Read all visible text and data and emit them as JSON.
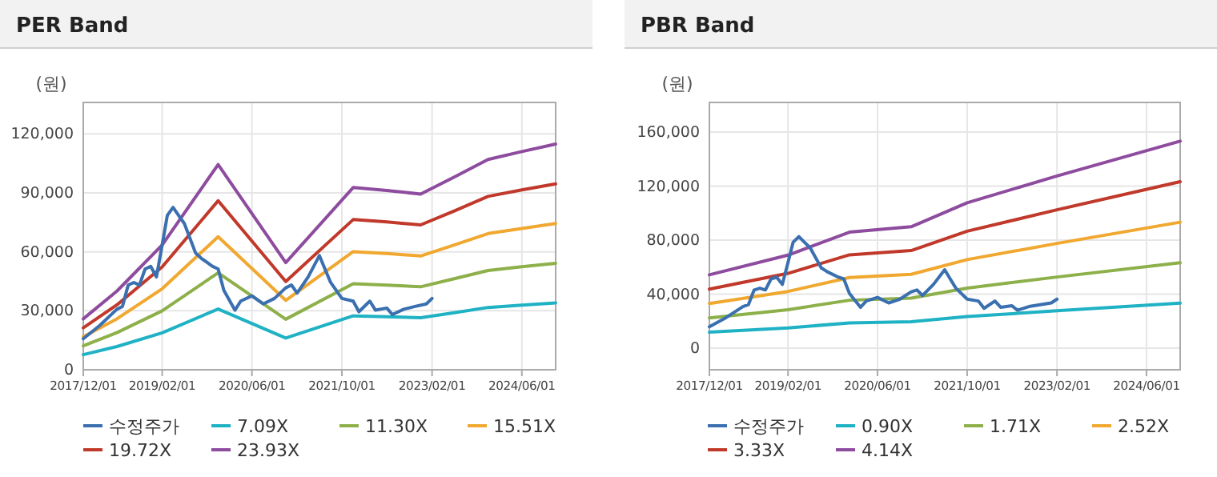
{
  "chart_data": [
    {
      "type": "line",
      "title": "PER Band",
      "ylabel": "(원)",
      "grid": true,
      "legend": "bottom",
      "marker": "none",
      "line_style": "solid",
      "xlim": [
        "2017-12-01",
        "2024-12-01"
      ],
      "xticks": [
        {
          "value": "2017-12-01",
          "label": "2017/12/01"
        },
        {
          "value": "2019-02-01",
          "label": "2019/02/01"
        },
        {
          "value": "2020-06-01",
          "label": "2020/06/01"
        },
        {
          "value": "2021-10-01",
          "label": "2021/10/01"
        },
        {
          "value": "2023-02-01",
          "label": "2023/02/01"
        },
        {
          "value": "2024-06-01",
          "label": "2024/06/01"
        }
      ],
      "ylim": [
        0,
        136000
      ],
      "yticks": [
        0,
        {
          "value": 30000,
          "label": "30,000"
        },
        {
          "value": 60000,
          "label": "60,000"
        },
        {
          "value": 90000,
          "label": "90,000"
        },
        {
          "value": 120000,
          "label": "120,000"
        }
      ],
      "x": [
        "2017-12",
        "2018-06",
        "2019-02",
        "2019-12",
        "2020-12",
        "2021-12",
        "2022-06",
        "2022-12",
        "2023-06",
        "2023-12",
        "2024-06",
        "2024-12"
      ],
      "series": [
        {
          "name": "수정주가",
          "color": "#3a6fb0",
          "x": [
            "2017-12",
            "2018-03",
            "2018-06",
            "2018-07",
            "2018-08",
            "2018-09",
            "2018-10",
            "2018-11",
            "2018-12",
            "2019-01",
            "2019-02",
            "2019-03",
            "2019-04",
            "2019-05",
            "2019-06",
            "2019-08",
            "2019-09",
            "2019-11",
            "2019-12",
            "2020-01",
            "2020-03",
            "2020-04",
            "2020-06",
            "2020-08",
            "2020-10",
            "2020-12",
            "2021-01",
            "2021-02",
            "2021-04",
            "2021-06",
            "2021-07",
            "2021-08",
            "2021-10",
            "2021-12",
            "2022-01",
            "2022-03",
            "2022-04",
            "2022-06",
            "2022-07",
            "2022-09",
            "2022-11",
            "2023-01",
            "2023-02"
          ],
          "values": [
            15800,
            22600,
            30800,
            32200,
            43100,
            44400,
            43100,
            51300,
            52600,
            47200,
            63500,
            78500,
            82600,
            78500,
            74400,
            59400,
            56700,
            52600,
            51300,
            40400,
            30300,
            34900,
            37600,
            33500,
            36300,
            41700,
            43100,
            39000,
            47200,
            58100,
            51300,
            44400,
            36300,
            34900,
            29500,
            34900,
            30300,
            31400,
            28100,
            30800,
            32200,
            33500,
            36300
          ]
        },
        {
          "name": "7.09X",
          "color": "#1fb2c4",
          "values": [
            7700,
            11800,
            18800,
            30900,
            16100,
            27400,
            27000,
            26500,
            29000,
            31700,
            32900,
            34000
          ]
        },
        {
          "name": "11.30X",
          "color": "#8db04a",
          "values": [
            12200,
            18900,
            30000,
            49300,
            25700,
            43800,
            43100,
            42200,
            46300,
            50500,
            52400,
            54200
          ]
        },
        {
          "name": "15.51X",
          "color": "#f0a830",
          "values": [
            16800,
            25900,
            41200,
            67700,
            35300,
            60100,
            59100,
            57900,
            63500,
            69300,
            71900,
            74400
          ]
        },
        {
          "name": "19.72X",
          "color": "#c0392b",
          "values": [
            21300,
            33000,
            52300,
            86000,
            44900,
            76400,
            75200,
            73700,
            80800,
            88200,
            91500,
            94600
          ]
        },
        {
          "name": "23.93X",
          "color": "#8e4c9e",
          "values": [
            25900,
            40000,
            63500,
            104400,
            54500,
            92700,
            91200,
            89400,
            98000,
            107000,
            111000,
            114800
          ]
        }
      ]
    },
    {
      "type": "line",
      "title": "PBR Band",
      "ylabel": "(원)",
      "grid": true,
      "legend": "bottom",
      "marker": "none",
      "line_style": "solid",
      "xlim": [
        "2017-12-01",
        "2024-12-01"
      ],
      "xticks": [
        {
          "value": "2017-12-01",
          "label": "2017/12/01"
        },
        {
          "value": "2019-02-01",
          "label": "2019/02/01"
        },
        {
          "value": "2020-06-01",
          "label": "2020/06/01"
        },
        {
          "value": "2021-10-01",
          "label": "2021/10/01"
        },
        {
          "value": "2023-02-01",
          "label": "2023/02/01"
        },
        {
          "value": "2024-06-01",
          "label": "2024/06/01"
        }
      ],
      "ylim": [
        -16000,
        182000
      ],
      "yticks": [
        0,
        {
          "value": 40000,
          "label": "40,000"
        },
        {
          "value": 80000,
          "label": "80,000"
        },
        {
          "value": 120000,
          "label": "120,000"
        },
        {
          "value": 160000,
          "label": "160,000"
        }
      ],
      "x": [
        "2017-12",
        "2019-02",
        "2020-01",
        "2020-12",
        "2021-10",
        "2023-02",
        "2024-12"
      ],
      "series": [
        {
          "name": "수정주가",
          "color": "#3a6fb0",
          "x": [
            "2017-12",
            "2018-03",
            "2018-06",
            "2018-07",
            "2018-08",
            "2018-09",
            "2018-10",
            "2018-11",
            "2018-12",
            "2019-01",
            "2019-02",
            "2019-03",
            "2019-04",
            "2019-05",
            "2019-06",
            "2019-08",
            "2019-09",
            "2019-11",
            "2019-12",
            "2020-01",
            "2020-03",
            "2020-04",
            "2020-06",
            "2020-08",
            "2020-10",
            "2020-12",
            "2021-01",
            "2021-02",
            "2021-04",
            "2021-06",
            "2021-07",
            "2021-08",
            "2021-10",
            "2021-12",
            "2022-01",
            "2022-03",
            "2022-04",
            "2022-06",
            "2022-07",
            "2022-09",
            "2022-11",
            "2023-01",
            "2023-02"
          ],
          "values": [
            15800,
            22600,
            30800,
            32200,
            43100,
            44400,
            43100,
            51300,
            52600,
            47200,
            63500,
            78500,
            82600,
            78500,
            74400,
            59400,
            56700,
            52600,
            51300,
            40400,
            30300,
            34900,
            37600,
            33500,
            36300,
            41700,
            43100,
            39000,
            47200,
            58100,
            51300,
            44400,
            36300,
            34900,
            29500,
            34900,
            30300,
            31400,
            28100,
            30800,
            32200,
            33500,
            36300
          ]
        },
        {
          "name": "0.90X",
          "color": "#1fb2c4",
          "values": [
            11800,
            15000,
            18700,
            19500,
            23400,
            27700,
            33300
          ]
        },
        {
          "name": "1.71X",
          "color": "#8db04a",
          "values": [
            22400,
            28500,
            35500,
            37100,
            44500,
            52700,
            63300
          ]
        },
        {
          "name": "2.52X",
          "color": "#f0a830",
          "values": [
            33100,
            42000,
            52300,
            54700,
            65600,
            77600,
            93300
          ]
        },
        {
          "name": "3.33X",
          "color": "#c0392b",
          "values": [
            43700,
            55400,
            69100,
            72300,
            86600,
            102500,
            123300
          ]
        },
        {
          "name": "4.14X",
          "color": "#8e4c9e",
          "values": [
            54300,
            68900,
            85900,
            89900,
            107700,
            127500,
            153300
          ]
        }
      ]
    }
  ]
}
